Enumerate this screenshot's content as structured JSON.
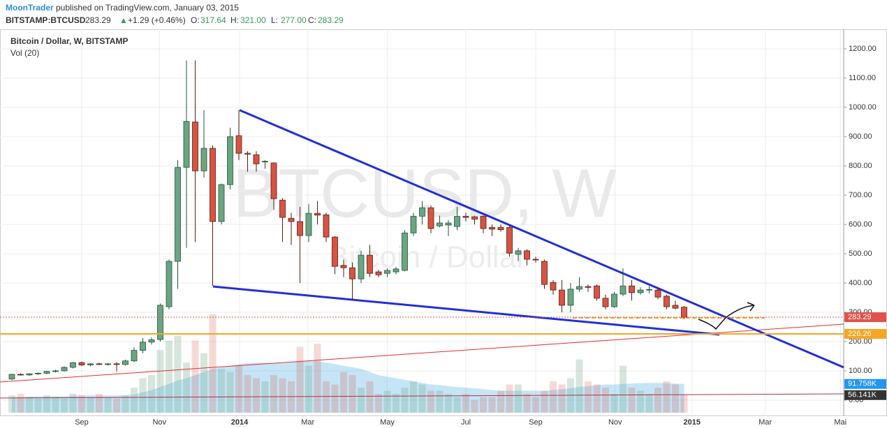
{
  "header": {
    "author": "MoonTrader",
    "published": "published on TradingView.com, January 03, 2015",
    "symbol": "BITSTAMP:BTCUSD",
    "price": "283.29",
    "arrow": "▲",
    "change": "+1.29 (+0.46%)",
    "ohlc": [
      {
        "key": "O:",
        "value": "317.64"
      },
      {
        "key": "H:",
        "value": "321.00"
      },
      {
        "key": "L:",
        "value": "277.00"
      },
      {
        "key": "C:",
        "value": "283.29"
      }
    ]
  },
  "chart_data": {
    "type": "candlestick",
    "title": "Bitcoin / Dollar, W, BITSTAMP",
    "watermark": "BTCUSD, W",
    "watermark_sub": "Bitcoin / Dollar",
    "grid": true,
    "x": [
      0,
      1,
      2,
      3,
      4,
      5,
      6,
      7,
      8,
      9,
      10,
      11,
      12,
      13,
      14,
      15,
      16,
      17,
      18,
      19,
      20,
      21,
      22,
      23,
      24,
      25,
      26,
      27,
      28,
      29,
      30,
      31,
      32,
      33,
      34,
      35,
      36,
      37,
      38,
      39,
      40,
      41,
      42,
      43,
      44,
      45,
      46,
      47,
      48,
      49,
      50,
      51,
      52,
      53,
      54,
      55,
      56,
      57,
      58,
      59,
      60,
      61,
      62,
      63,
      64,
      65,
      66,
      67,
      68,
      69,
      70,
      71,
      72,
      73,
      74,
      75,
      76,
      77
    ],
    "series": [
      {
        "up_color": "#6ba583",
        "down_color": "#d75442",
        "open": [
          72,
          88,
          86,
          90,
          92,
          98,
          100,
          112,
          128,
          120,
          124,
          122,
          124,
          122,
          134,
          170,
          198,
          207,
          319,
          474,
          795,
          950,
          783,
          860,
          610,
          736,
          903,
          843,
          838,
          814,
          810,
          683,
          621,
          610,
          562,
          638,
          633,
          557,
          460,
          452,
          414,
          495,
          438,
          433,
          438,
          443,
          571,
          628,
          657,
          595,
          598,
          593,
          628,
          626,
          628,
          590,
          590,
          590,
          498,
          510,
          481,
          474,
          402,
          376,
          324,
          379,
          388,
          390,
          348,
          319,
          362,
          390,
          367,
          376,
          376,
          355,
          324,
          317.64
        ],
        "high": [
          90,
          92,
          92,
          94,
          100,
          104,
          115,
          130,
          132,
          126,
          128,
          126,
          130,
          138,
          180,
          212,
          215,
          330,
          480,
          820,
          1160,
          1160,
          990,
          870,
          740,
          930,
          990,
          850,
          850,
          820,
          812,
          690,
          640,
          660,
          670,
          680,
          640,
          560,
          480,
          470,
          510,
          530,
          445,
          450,
          455,
          580,
          640,
          680,
          665,
          630,
          615,
          660,
          640,
          630,
          630,
          600,
          600,
          595,
          520,
          515,
          490,
          480,
          410,
          410,
          400,
          420,
          395,
          395,
          360,
          370,
          450,
          410,
          385,
          390,
          385,
          360,
          340,
          321
        ],
        "low": [
          68,
          84,
          82,
          86,
          88,
          94,
          98,
          108,
          116,
          116,
          120,
          118,
          98,
          118,
          130,
          160,
          190,
          200,
          310,
          380,
          520,
          540,
          760,
          390,
          600,
          720,
          820,
          780,
          780,
          790,
          650,
          540,
          530,
          400,
          540,
          600,
          540,
          430,
          420,
          340,
          400,
          420,
          420,
          420,
          430,
          440,
          560,
          600,
          570,
          590,
          560,
          580,
          610,
          600,
          570,
          560,
          575,
          490,
          475,
          460,
          470,
          380,
          360,
          300,
          300,
          370,
          370,
          340,
          310,
          315,
          355,
          340,
          360,
          365,
          345,
          310,
          310,
          277
        ],
        "close": [
          88,
          86,
          90,
          92,
          98,
          100,
          112,
          128,
          120,
          124,
          122,
          124,
          122,
          134,
          170,
          198,
          206,
          324,
          474,
          795,
          952,
          783,
          860,
          610,
          736,
          900,
          843,
          840,
          807,
          816,
          688,
          624,
          610,
          562,
          638,
          632,
          557,
          457,
          452,
          414,
          495,
          433,
          428,
          443,
          448,
          571,
          628,
          657,
          586,
          605,
          605,
          628,
          624,
          618,
          586,
          584,
          582,
          502,
          510,
          481,
          479,
          395,
          376,
          324,
          379,
          388,
          385,
          348,
          319,
          362,
          390,
          367,
          376,
          378,
          352,
          319,
          314,
          283.29
        ]
      }
    ],
    "volume": {
      "name": "Vol (20)",
      "ylim": [
        -11.1,
        1224
      ],
      "values": [
        55,
        60,
        50,
        45,
        55,
        50,
        45,
        60,
        55,
        50,
        60,
        50,
        45,
        55,
        80,
        110,
        120,
        200,
        230,
        245,
        160,
        230,
        190,
        314,
        140,
        130,
        150,
        120,
        110,
        100,
        120,
        110,
        100,
        210,
        150,
        220,
        100,
        90,
        130,
        120,
        80,
        100,
        60,
        70,
        60,
        80,
        100,
        90,
        70,
        70,
        60,
        50,
        60,
        40,
        50,
        50,
        70,
        90,
        90,
        60,
        50,
        70,
        100,
        90,
        110,
        170,
        100,
        90,
        80,
        60,
        150,
        80,
        70,
        60,
        80,
        100,
        90,
        56.141
      ],
      "ma": [
        50,
        50,
        52,
        52,
        52,
        53,
        53,
        54,
        55,
        55,
        55,
        55,
        55,
        56,
        58,
        65,
        72,
        82,
        92,
        103,
        110,
        120,
        130,
        140,
        145,
        150,
        155,
        158,
        160,
        160,
        158,
        158,
        160,
        165,
        165,
        165,
        160,
        155,
        150,
        145,
        140,
        130,
        120,
        115,
        110,
        105,
        100,
        95,
        90,
        88,
        85,
        82,
        80,
        78,
        75,
        72,
        70,
        70,
        70,
        70,
        70,
        70,
        72,
        75,
        78,
        82,
        85,
        88,
        90,
        90,
        92,
        93,
        94,
        95,
        95,
        94,
        93,
        91.758
      ]
    },
    "xlim": [
      -1.36,
      95.28
    ],
    "xticks": [
      {
        "value": 8.0,
        "label": "Sep"
      },
      {
        "value": 16.9,
        "label": "Nov"
      },
      {
        "value": 26.08,
        "label": "2014"
      },
      {
        "value": 33.9,
        "label": "Mar"
      },
      {
        "value": 43.0,
        "label": "May"
      },
      {
        "value": 52.0,
        "label": "Jul"
      },
      {
        "value": 60.0,
        "label": "Sep"
      },
      {
        "value": 69.1,
        "label": "Nov"
      },
      {
        "value": 77.9,
        "label": "2015"
      },
      {
        "value": 86.3,
        "label": "Mar"
      },
      {
        "value": 94.9,
        "label": "Mai"
      }
    ],
    "ylim": [
      -54.76,
      1266.67
    ],
    "yticks": [
      {
        "value": 0,
        "label": "0.00"
      },
      {
        "value": 100,
        "label": "100.00"
      },
      {
        "value": 200,
        "label": "200.00"
      },
      {
        "value": 300,
        "label": "300.00"
      },
      {
        "value": 400,
        "label": "400.00"
      },
      {
        "value": 500,
        "label": "500.00"
      },
      {
        "value": 600,
        "label": "600.00"
      },
      {
        "value": 700,
        "label": "700.00"
      },
      {
        "value": 800,
        "label": "800.00"
      },
      {
        "value": 900,
        "label": "900.00"
      },
      {
        "value": 1000,
        "label": "1000.00"
      },
      {
        "value": 1100,
        "label": "1100.00"
      },
      {
        "value": 1200,
        "label": "1200.00"
      }
    ],
    "price_tags": [
      {
        "value": 283.29,
        "label": "283.29",
        "color": "#e0534a",
        "line_style": "dotted"
      },
      {
        "value": 226.26,
        "label": "226.26",
        "color": "#f5a623",
        "line_style": "solid"
      }
    ],
    "volume_tags": [
      {
        "value": 91.758,
        "label": "91.758K",
        "color": "#2196f3"
      },
      {
        "value": 56.141,
        "label": "56.141K",
        "color": "#333333"
      }
    ]
  }
}
